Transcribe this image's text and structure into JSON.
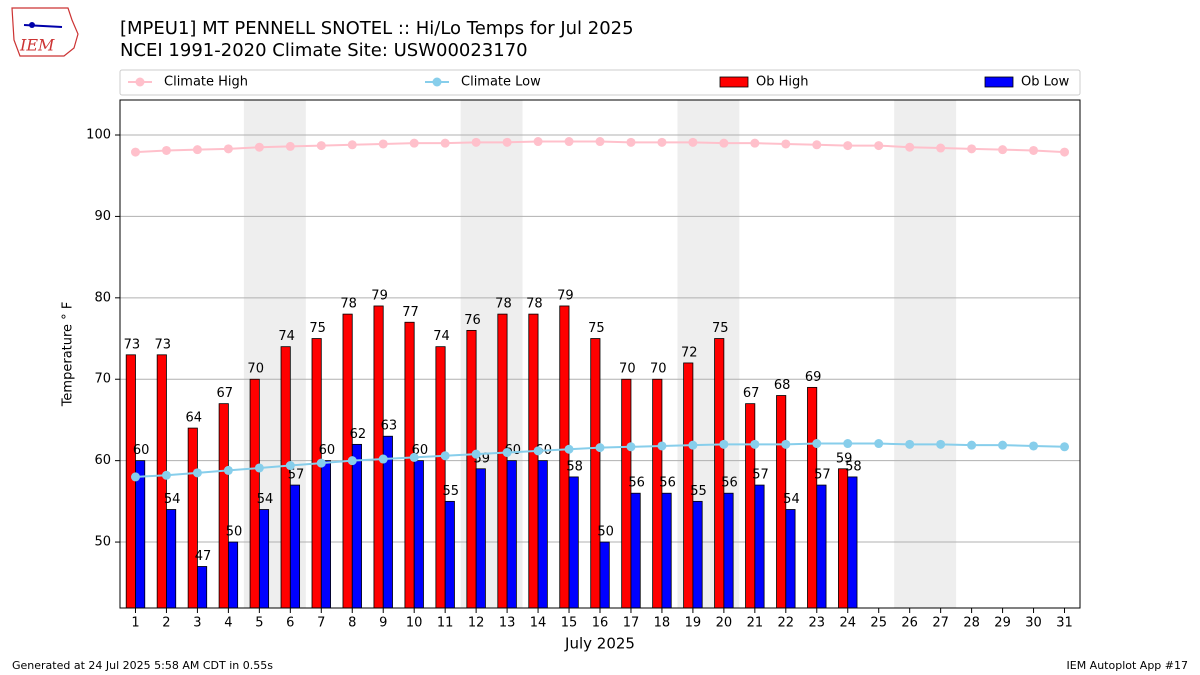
{
  "chart_data": {
    "type": "bar",
    "logo_text": "IEM",
    "title": "[MPEU1] MT PENNELL SNOTEL :: Hi/Lo Temps for Jul 2025",
    "subtitle": "NCEI 1991-2020 Climate Site: USW00023170",
    "ylabel": "Temperature ° F",
    "xlabel": "July 2025",
    "footer_left": "Generated at 24 Jul 2025 5:58 AM CDT in 0.55s",
    "footer_right": "IEM Autoplot App #17",
    "x": [
      1,
      2,
      3,
      4,
      5,
      6,
      7,
      8,
      9,
      10,
      11,
      12,
      13,
      14,
      15,
      16,
      17,
      18,
      19,
      20,
      21,
      22,
      23,
      24,
      25,
      26,
      27,
      28,
      29,
      30,
      31
    ],
    "xlim": [
      0.5,
      31.5
    ],
    "ylim": [
      41.9,
      104.3
    ],
    "yticks": [
      50,
      60,
      70,
      80,
      90,
      100
    ],
    "grid": true,
    "shaded_ranges": [
      [
        4.5,
        6.5
      ],
      [
        11.5,
        13.5
      ],
      [
        18.5,
        20.5
      ],
      [
        25.5,
        27.5
      ]
    ],
    "shade_color": "#eeeeee",
    "series": [
      {
        "name": "Climate High",
        "type": "line",
        "color": "#ffc0cb",
        "values": [
          97.9,
          98.1,
          98.2,
          98.3,
          98.5,
          98.6,
          98.7,
          98.8,
          98.9,
          99.0,
          99.0,
          99.1,
          99.1,
          99.2,
          99.2,
          99.2,
          99.1,
          99.1,
          99.1,
          99.0,
          99.0,
          98.9,
          98.8,
          98.7,
          98.7,
          98.5,
          98.4,
          98.3,
          98.2,
          98.1,
          97.9
        ]
      },
      {
        "name": "Climate Low",
        "type": "line",
        "color": "#87ceeb",
        "values": [
          58.0,
          58.2,
          58.5,
          58.8,
          59.1,
          59.4,
          59.7,
          60.0,
          60.2,
          60.4,
          60.6,
          60.8,
          61.0,
          61.2,
          61.4,
          61.6,
          61.7,
          61.8,
          61.9,
          62.0,
          62.0,
          62.0,
          62.1,
          62.1,
          62.1,
          62.0,
          62.0,
          61.9,
          61.9,
          61.8,
          61.7
        ]
      },
      {
        "name": "Ob High",
        "type": "bar",
        "color": "#ff0000",
        "values": [
          73,
          73,
          64,
          67,
          70,
          74,
          75,
          78,
          79,
          77,
          74,
          76,
          78,
          78,
          79,
          75,
          70,
          70,
          72,
          75,
          67,
          68,
          69,
          59,
          null,
          null,
          null,
          null,
          null,
          null,
          null
        ]
      },
      {
        "name": "Ob Low",
        "type": "bar",
        "color": "#0000ff",
        "values": [
          60,
          54,
          47,
          50,
          54,
          57,
          60,
          62,
          63,
          60,
          55,
          59,
          60,
          60,
          58,
          50,
          56,
          56,
          55,
          56,
          57,
          54,
          57,
          58,
          null,
          null,
          null,
          null,
          null,
          null,
          null
        ]
      }
    ]
  }
}
